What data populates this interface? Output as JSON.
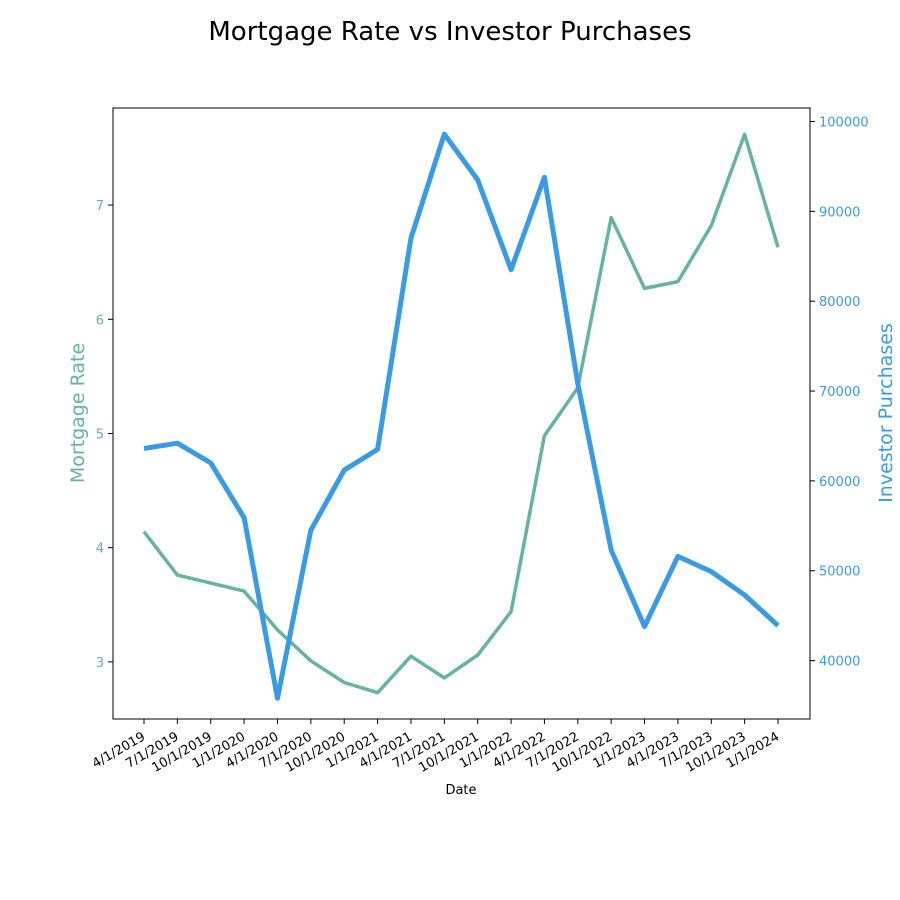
{
  "chart_data": {
    "type": "line",
    "title": "Mortgage Rate vs Investor Purchases",
    "xlabel": "Date",
    "categories": [
      "4/1/2019",
      "7/1/2019",
      "10/1/2019",
      "1/1/2020",
      "4/1/2020",
      "7/1/2020",
      "10/1/2020",
      "1/1/2021",
      "4/1/2021",
      "7/1/2021",
      "10/1/2021",
      "1/1/2022",
      "4/1/2022",
      "7/1/2022",
      "10/1/2022",
      "1/1/2023",
      "4/1/2023",
      "7/1/2023",
      "10/1/2023",
      "1/1/2024"
    ],
    "y_left": {
      "label": "Mortgage Rate",
      "color": "#66b3a0",
      "ylim": [
        2.5,
        7.85
      ],
      "ticks": [
        3,
        4,
        5,
        6,
        7
      ]
    },
    "y_right": {
      "label": "Investor Purchases",
      "color": "#3a9be3",
      "ylim": [
        33500,
        101500
      ],
      "ticks": [
        40000,
        50000,
        60000,
        70000,
        80000,
        90000,
        100000
      ]
    },
    "series": [
      {
        "name": "Mortgage Rate",
        "axis": "left",
        "color": "#66b3a0",
        "values": [
          4.14,
          3.76,
          3.69,
          3.62,
          3.28,
          3.01,
          2.82,
          2.73,
          3.05,
          2.86,
          3.06,
          3.44,
          4.98,
          5.4,
          6.89,
          6.27,
          6.33,
          6.82,
          7.62,
          6.63
        ]
      },
      {
        "name": "Investor Purchases",
        "axis": "right",
        "color": "#3a9be3",
        "values": [
          63600,
          64200,
          62000,
          55900,
          35800,
          54500,
          61200,
          63500,
          87000,
          98600,
          93500,
          83500,
          93800,
          70800,
          52300,
          43800,
          51600,
          49900,
          47300,
          43900
        ]
      }
    ],
    "grid": false,
    "legend": "none"
  }
}
